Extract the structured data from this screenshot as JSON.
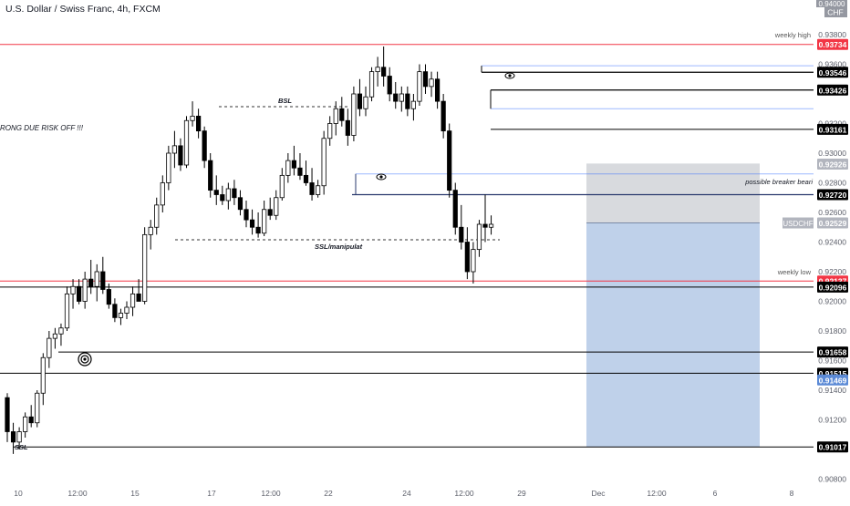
{
  "header": {
    "symbol_title": "U.S. Dollar / Swiss Franc, 4h, FXCM",
    "currency": "CHF"
  },
  "colors": {
    "background": "#ffffff",
    "candle_up": "#ffffff",
    "candle_down": "#000000",
    "candle_wick": "#000000",
    "weekly_line": "#f23645",
    "level_line": "#000000",
    "blue_line": "#2962ff",
    "last_price_tag": "#b2b5be",
    "stop_zone": "#b2b5be",
    "target_zone": "#a9c1e3",
    "target_tag": "#5b8ad6",
    "grid": "#f0f3fa",
    "axis_text": "#131722"
  },
  "chart_data": {
    "type": "candlestick",
    "title": "U.S. Dollar / Swiss Franc, 4h, FXCM",
    "ylim": [
      0.907,
      0.94
    ],
    "y_ticks": [
      0.908,
      0.912,
      0.914,
      0.916,
      0.918,
      0.92,
      0.922,
      0.924,
      0.926,
      0.928,
      0.93,
      0.932,
      0.936,
      0.938
    ],
    "x_ticks": [
      "10",
      "12:00",
      "15",
      "17",
      "12:00",
      "22",
      "24",
      "12:00",
      "29",
      "Dec",
      "12:00",
      "6",
      "8"
    ],
    "grid": false,
    "candles": [
      [
        0.9135,
        0.9138,
        0.9105,
        0.9112
      ],
      [
        0.9112,
        0.9118,
        0.9097,
        0.9105
      ],
      [
        0.9105,
        0.9115,
        0.91,
        0.9112
      ],
      [
        0.9112,
        0.9125,
        0.9108,
        0.9122
      ],
      [
        0.9122,
        0.913,
        0.9115,
        0.9118
      ],
      [
        0.9118,
        0.914,
        0.9115,
        0.9138
      ],
      [
        0.9138,
        0.9165,
        0.913,
        0.9162
      ],
      [
        0.9162,
        0.918,
        0.9155,
        0.9175
      ],
      [
        0.9175,
        0.9182,
        0.9168,
        0.9178
      ],
      [
        0.9178,
        0.9185,
        0.917,
        0.9182
      ],
      [
        0.9182,
        0.921,
        0.918,
        0.9205
      ],
      [
        0.9205,
        0.9215,
        0.9195,
        0.921
      ],
      [
        0.921,
        0.9215,
        0.9198,
        0.92
      ],
      [
        0.92,
        0.922,
        0.9195,
        0.9215
      ],
      [
        0.9215,
        0.9228,
        0.9205,
        0.921
      ],
      [
        0.921,
        0.9225,
        0.92,
        0.922
      ],
      [
        0.922,
        0.923,
        0.9205,
        0.9208
      ],
      [
        0.9208,
        0.9212,
        0.9195,
        0.9198
      ],
      [
        0.9198,
        0.9202,
        0.9186,
        0.9189
      ],
      [
        0.9189,
        0.9195,
        0.9184,
        0.9192
      ],
      [
        0.9192,
        0.92,
        0.9188,
        0.9196
      ],
      [
        0.9196,
        0.921,
        0.919,
        0.9205
      ],
      [
        0.9205,
        0.9215,
        0.92,
        0.92
      ],
      [
        0.92,
        0.925,
        0.9198,
        0.9245
      ],
      [
        0.9245,
        0.9255,
        0.9235,
        0.925
      ],
      [
        0.925,
        0.927,
        0.9245,
        0.9265
      ],
      [
        0.9265,
        0.9285,
        0.926,
        0.928
      ],
      [
        0.928,
        0.9305,
        0.9275,
        0.93
      ],
      [
        0.93,
        0.9315,
        0.929,
        0.9305
      ],
      [
        0.9305,
        0.931,
        0.9288,
        0.9292
      ],
      [
        0.9292,
        0.9325,
        0.929,
        0.9322
      ],
      [
        0.9322,
        0.9335,
        0.9318,
        0.9325
      ],
      [
        0.9325,
        0.933,
        0.931,
        0.9315
      ],
      [
        0.9315,
        0.9318,
        0.929,
        0.9295
      ],
      [
        0.9295,
        0.93,
        0.927,
        0.9275
      ],
      [
        0.9275,
        0.9285,
        0.9265,
        0.9272
      ],
      [
        0.9272,
        0.9278,
        0.9265,
        0.9268
      ],
      [
        0.9268,
        0.928,
        0.9262,
        0.9276
      ],
      [
        0.9276,
        0.9282,
        0.9265,
        0.927
      ],
      [
        0.927,
        0.9275,
        0.9258,
        0.9262
      ],
      [
        0.9262,
        0.9268,
        0.925,
        0.9255
      ],
      [
        0.9255,
        0.9262,
        0.9245,
        0.925
      ],
      [
        0.925,
        0.926,
        0.9243,
        0.9246
      ],
      [
        0.9246,
        0.9268,
        0.9244,
        0.9262
      ],
      [
        0.9262,
        0.927,
        0.9255,
        0.9258
      ],
      [
        0.9258,
        0.9275,
        0.9255,
        0.927
      ],
      [
        0.927,
        0.929,
        0.9268,
        0.9285
      ],
      [
        0.9285,
        0.93,
        0.928,
        0.9295
      ],
      [
        0.9295,
        0.9305,
        0.9285,
        0.929
      ],
      [
        0.929,
        0.93,
        0.9282,
        0.9285
      ],
      [
        0.9285,
        0.9295,
        0.9278,
        0.928
      ],
      [
        0.928,
        0.929,
        0.9268,
        0.9272
      ],
      [
        0.9272,
        0.9282,
        0.927,
        0.9278
      ],
      [
        0.9278,
        0.9315,
        0.9272,
        0.931
      ],
      [
        0.931,
        0.9325,
        0.9305,
        0.932
      ],
      [
        0.932,
        0.9335,
        0.9312,
        0.933
      ],
      [
        0.933,
        0.9338,
        0.9318,
        0.9322
      ],
      [
        0.9322,
        0.933,
        0.9305,
        0.9312
      ],
      [
        0.9312,
        0.9345,
        0.9308,
        0.934
      ],
      [
        0.934,
        0.935,
        0.9325,
        0.933
      ],
      [
        0.933,
        0.9345,
        0.9325,
        0.9338
      ],
      [
        0.9338,
        0.9358,
        0.9335,
        0.9355
      ],
      [
        0.9355,
        0.9365,
        0.9345,
        0.9358
      ],
      [
        0.9358,
        0.9372,
        0.9345,
        0.9352
      ],
      [
        0.9352,
        0.9358,
        0.9335,
        0.934
      ],
      [
        0.934,
        0.9348,
        0.933,
        0.9335
      ],
      [
        0.9335,
        0.9345,
        0.9328,
        0.934
      ],
      [
        0.934,
        0.9345,
        0.9325,
        0.933
      ],
      [
        0.933,
        0.934,
        0.9322,
        0.9335
      ],
      [
        0.9335,
        0.936,
        0.9332,
        0.9355
      ],
      [
        0.9355,
        0.936,
        0.934,
        0.9345
      ],
      [
        0.9345,
        0.9355,
        0.9338,
        0.935
      ],
      [
        0.935,
        0.9355,
        0.933,
        0.9335
      ],
      [
        0.9335,
        0.934,
        0.931,
        0.9315
      ],
      [
        0.9315,
        0.932,
        0.927,
        0.9275
      ],
      [
        0.9275,
        0.928,
        0.9245,
        0.925
      ],
      [
        0.925,
        0.9265,
        0.9235,
        0.924
      ],
      [
        0.924,
        0.925,
        0.9215,
        0.922
      ],
      [
        0.922,
        0.924,
        0.9212,
        0.9235
      ],
      [
        0.9235,
        0.9255,
        0.923,
        0.9252
      ],
      [
        0.9252,
        0.9272,
        0.924,
        0.925
      ],
      [
        0.925,
        0.9258,
        0.9245,
        0.9252
      ]
    ]
  },
  "annotations": {
    "rong_text": "RONG  DUE RISK OFF !!!",
    "bsl": "BSL",
    "ssl_manip": "SSL/manipulat",
    "ssl_bottom": "SSL",
    "weekly_high": "weekly high",
    "weekly_low": "weekly low",
    "possible_breaker": "possible breaker beari"
  },
  "levels": [
    {
      "name": "weekly-high-line",
      "price": 0.93734,
      "label": "0.93734",
      "kind": "weekly"
    },
    {
      "name": "level-93546",
      "price": 0.93546,
      "label": "0.93546",
      "kind": "level"
    },
    {
      "name": "level-93426",
      "price": 0.93426,
      "label": "0.93426",
      "kind": "level"
    },
    {
      "name": "level-93161",
      "price": 0.93161,
      "label": "0.93161",
      "kind": "level"
    },
    {
      "name": "level-92926",
      "price": 0.92926,
      "label": "0.92926",
      "kind": "gray"
    },
    {
      "name": "level-92720",
      "price": 0.9272,
      "label": "0.92720",
      "kind": "level"
    },
    {
      "name": "level-92529",
      "price": 0.92529,
      "label": "0.92529",
      "kind": "gray"
    },
    {
      "name": "weekly-low-line",
      "price": 0.92137,
      "label": "0.92137",
      "kind": "weekly"
    },
    {
      "name": "level-92096",
      "price": 0.92096,
      "label": "0.92096",
      "kind": "level"
    },
    {
      "name": "level-91658",
      "price": 0.91658,
      "label": "0.91658",
      "kind": "level"
    },
    {
      "name": "level-91515",
      "price": 0.91515,
      "label": "0.91515",
      "kind": "level"
    },
    {
      "name": "level-91469",
      "price": 0.91469,
      "label": "0.91469",
      "kind": "target"
    },
    {
      "name": "level-91017",
      "price": 0.91017,
      "label": "0.91017",
      "kind": "level"
    }
  ],
  "price_tags": {
    "top": "0.94000",
    "usdchf_label": "USDCHF",
    "usdchf_price": "0.92529"
  }
}
